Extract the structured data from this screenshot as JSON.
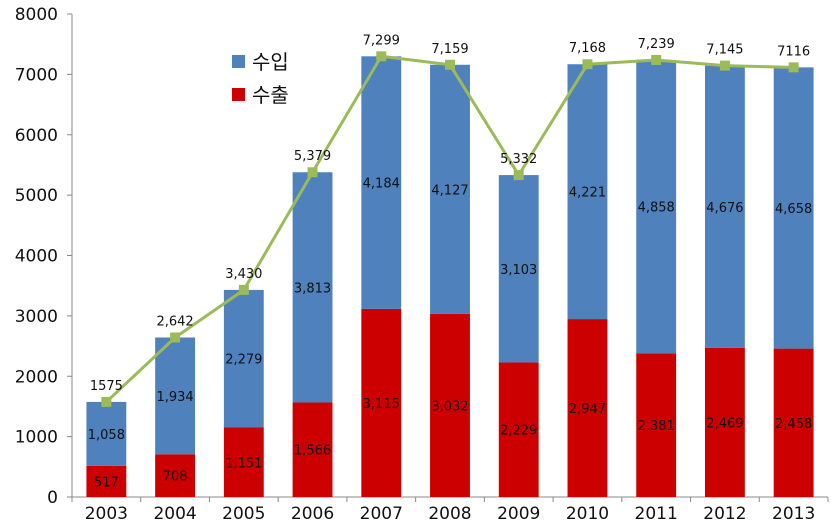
{
  "chart_data": {
    "type": "bar",
    "stacked": true,
    "categories": [
      "2003",
      "2004",
      "2005",
      "2006",
      "2007",
      "2008",
      "2009",
      "2010",
      "2011",
      "2012",
      "2013"
    ],
    "series": [
      {
        "name": "수출",
        "color": "#cc0000",
        "values": [
          517,
          708,
          1151,
          1566,
          3115,
          3032,
          2229,
          2947,
          2381,
          2469,
          2458
        ],
        "labels": [
          "517",
          "708",
          "1,151",
          "1,566",
          "3,115",
          "3,032",
          "2,229",
          "2,947",
          "2,381",
          "2,469",
          "2,458"
        ]
      },
      {
        "name": "수입",
        "color": "#4f81bd",
        "values": [
          1058,
          1934,
          2279,
          3813,
          4184,
          4127,
          3103,
          4221,
          4858,
          4676,
          4658
        ],
        "labels": [
          "1,058",
          "1,934",
          "2,279",
          "3,813",
          "4,184",
          "4,127",
          "3,103",
          "4,221",
          "4,858",
          "4,676",
          "4,658"
        ]
      }
    ],
    "total_line": {
      "color": "#9bbb59",
      "values": [
        1575,
        2642,
        3430,
        5379,
        7299,
        7159,
        5332,
        7168,
        7239,
        7145,
        7116
      ],
      "labels": [
        "1575",
        "2,642",
        "3,430",
        "5,379",
        "7,299",
        "7,159",
        "5,332",
        "7,168",
        "7,239",
        "7,145",
        "7116"
      ]
    },
    "ylim": [
      0,
      8000
    ],
    "yticks": [
      "0",
      "1000",
      "2000",
      "3000",
      "4000",
      "5000",
      "6000",
      "7000",
      "8000"
    ],
    "grid": false,
    "legend_position": "top-left-inside",
    "legend": [
      {
        "name": "수입",
        "color": "#4f81bd"
      },
      {
        "name": "수출",
        "color": "#cc0000"
      }
    ]
  }
}
